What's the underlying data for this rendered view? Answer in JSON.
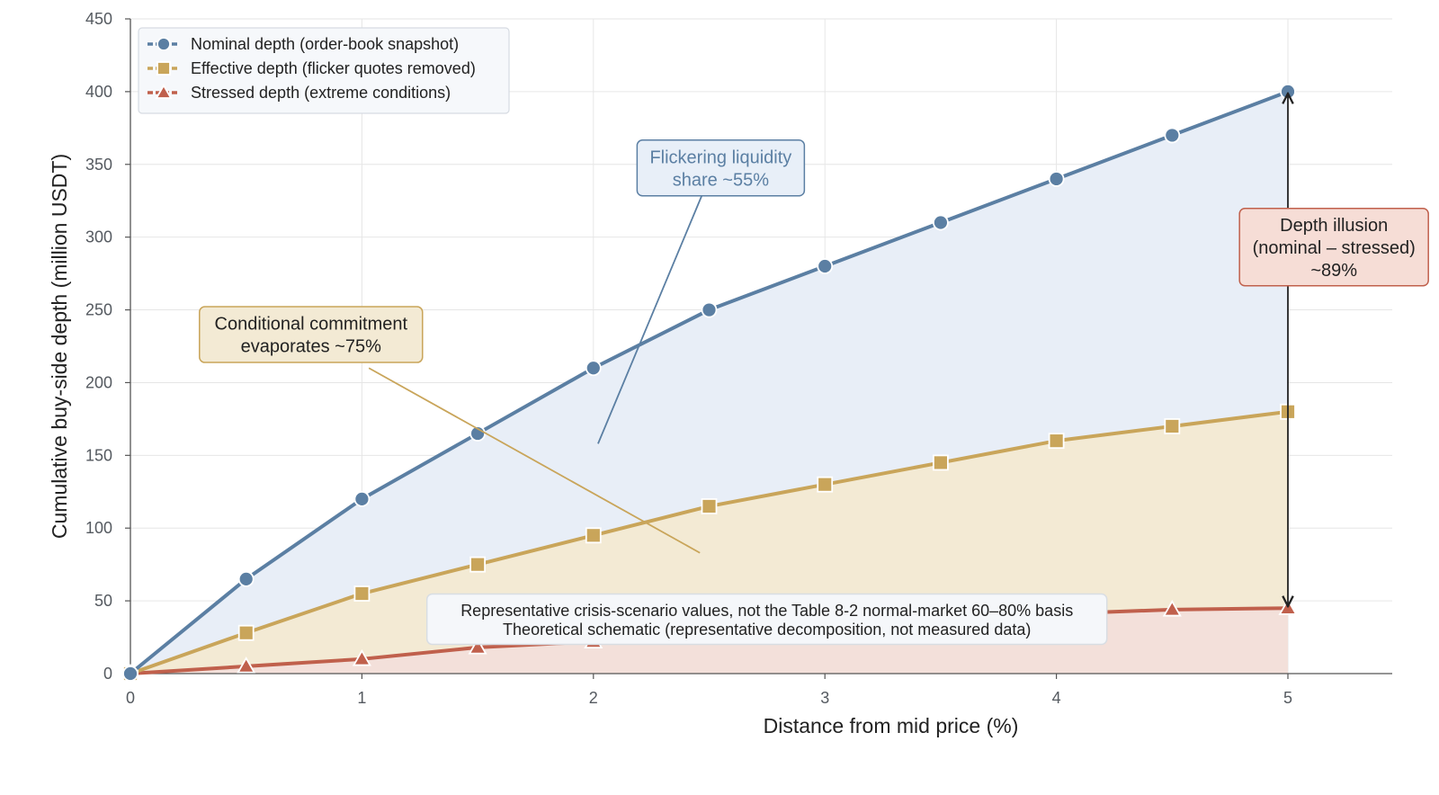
{
  "chart_data": {
    "type": "line",
    "xlabel": "Distance from mid price (%)",
    "ylabel": "Cumulative buy-side depth (million USDT)",
    "xlim": [
      0,
      5.45
    ],
    "ylim": [
      0,
      450
    ],
    "x_ticks": [
      0,
      1,
      2,
      3,
      4,
      5
    ],
    "y_ticks": [
      0,
      50,
      100,
      150,
      200,
      250,
      300,
      350,
      400,
      450
    ],
    "grid": true,
    "legend_position": "top-left",
    "x": [
      0,
      0.5,
      1,
      1.5,
      2,
      2.5,
      3,
      3.5,
      4,
      4.5,
      5
    ],
    "series": [
      {
        "name": "Nominal depth (order-book snapshot)",
        "marker": "circle",
        "color": "#5b7fa3",
        "fill": "#e8eef7",
        "values": [
          0,
          65,
          120,
          165,
          210,
          250,
          280,
          310,
          340,
          370,
          400
        ]
      },
      {
        "name": "Effective depth (flicker quotes removed)",
        "marker": "square",
        "color": "#c9a55a",
        "fill": "#f3ead4",
        "values": [
          0,
          28,
          55,
          75,
          95,
          115,
          130,
          145,
          160,
          170,
          180
        ]
      },
      {
        "name": "Stressed depth (extreme conditions)",
        "marker": "triangle",
        "color": "#c0604c",
        "fill": "#f3e0da",
        "values": [
          0,
          5,
          10,
          18,
          22,
          27,
          33,
          38,
          41,
          44,
          45
        ]
      }
    ],
    "annotations": {
      "flicker": {
        "lines": [
          "Flickering liquidity",
          "share ~55%"
        ],
        "text_color": "#5b7fa3",
        "box_fill": "#e8eff8",
        "box_stroke": "#5b7fa3",
        "arrow_color": "#5b7fa3",
        "box_at": [
          2.55,
          350
        ],
        "arrow_from": [
          2.48,
          333
        ],
        "arrow_to": [
          2.02,
          158
        ]
      },
      "conditional": {
        "lines": [
          "Conditional commitment",
          "evaporates ~75%"
        ],
        "text_color": "#222222",
        "box_fill": "#f3ead4",
        "box_stroke": "#c9a55a",
        "arrow_color": "#c9a55a",
        "box_at": [
          0.78,
          233
        ],
        "arrow_from": [
          1.03,
          210
        ],
        "arrow_to": [
          2.46,
          83
        ]
      },
      "illusion": {
        "lines": [
          "Depth illusion",
          "(nominal – stressed)",
          "~89%"
        ],
        "text_color": "#222222",
        "box_fill": "#f6ddd6",
        "box_stroke": "#c0604c",
        "box_at": [
          5.16,
          295
        ],
        "arrow_x": 5,
        "arrow_top": 400,
        "arrow_bottom": 45
      },
      "note": {
        "lines": [
          "Representative crisis-scenario values, not the Table 8-2 normal-market 60–80% basis",
          "Theoretical schematic (representative decomposition, not measured data)"
        ],
        "box_fill": "#f5f7fa",
        "box_stroke": "#d8dde3",
        "box_at": [
          2.73,
          38
        ]
      }
    }
  }
}
